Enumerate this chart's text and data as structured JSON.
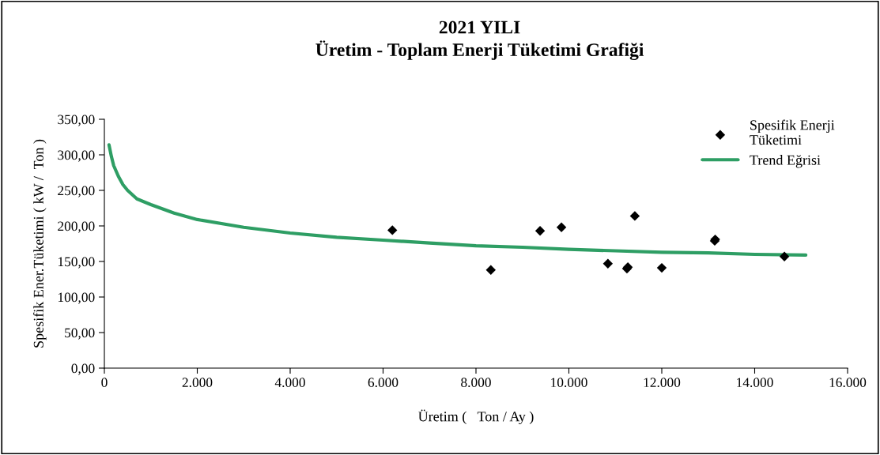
{
  "chart_data": {
    "type": "scatter",
    "title": "2021 YILI\nÜretim - Toplam Enerji Tüketimi Grafiği",
    "xlabel": "Üretim (   Ton / Ay )",
    "ylabel": "Spesifik Ener.Tüketimi ( kW /  Ton )",
    "xlim": [
      0,
      16000
    ],
    "ylim": [
      0,
      350
    ],
    "xticks": [
      {
        "value": 0,
        "label": "0"
      },
      {
        "value": 2000,
        "label": "2.000"
      },
      {
        "value": 4000,
        "label": "4.000"
      },
      {
        "value": 6000,
        "label": "6.000"
      },
      {
        "value": 8000,
        "label": "8.000"
      },
      {
        "value": 10000,
        "label": "10.000"
      },
      {
        "value": 12000,
        "label": "12.000"
      },
      {
        "value": 14000,
        "label": "14.000"
      },
      {
        "value": 16000,
        "label": "16.000"
      }
    ],
    "yticks": [
      {
        "value": 0,
        "label": "0,00"
      },
      {
        "value": 50,
        "label": "50,00"
      },
      {
        "value": 100,
        "label": "100,00"
      },
      {
        "value": 150,
        "label": "150,00"
      },
      {
        "value": 200,
        "label": "200,00"
      },
      {
        "value": 250,
        "label": "250,00"
      },
      {
        "value": 300,
        "label": "300,00"
      },
      {
        "value": 350,
        "label": "350,00"
      }
    ],
    "grid": false,
    "legend": "top right",
    "series": [
      {
        "name": "Spesifik Enerji\nTüketimi",
        "marker": "diamond",
        "color": "#000000",
        "x": [
          6200,
          8320,
          9380,
          9840,
          10840,
          11250,
          11270,
          11420,
          12000,
          13140,
          13150,
          14640
        ],
        "values": [
          194,
          138,
          193,
          198,
          147,
          140,
          142,
          214,
          141,
          179,
          181,
          157
        ]
      },
      {
        "name": "Trend Eğrisi",
        "type": "line",
        "color": "#2e9e64",
        "marker": "none",
        "x": [
          100,
          150,
          200,
          300,
          400,
          500,
          700,
          1000,
          1500,
          2000,
          3000,
          4000,
          5000,
          6000,
          7000,
          8000,
          9000,
          10000,
          11000,
          12000,
          13000,
          14000,
          15100
        ],
        "values": [
          314,
          298,
          285,
          270,
          258,
          250,
          238,
          230,
          218,
          209,
          198,
          190,
          184,
          180,
          176,
          172,
          170,
          167,
          165,
          163,
          162,
          160,
          159
        ]
      }
    ]
  }
}
